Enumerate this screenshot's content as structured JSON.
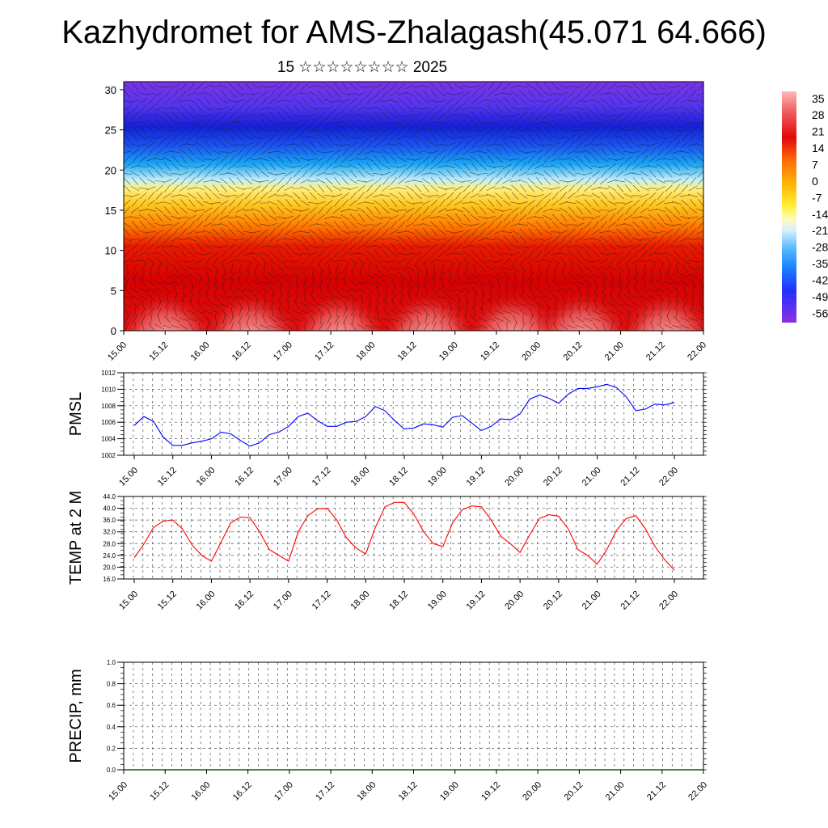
{
  "title": "Kazhydromet for AMS-Zhalagash(45.071 64.666)",
  "subtitle": "15 ☆☆☆☆☆☆☆☆ 2025",
  "time_labels": [
    "15.00",
    "15.12",
    "16.00",
    "16.12",
    "17.00",
    "17.12",
    "18.00",
    "18.12",
    "19.00",
    "19.12",
    "20.00",
    "20.12",
    "21.00",
    "21.12",
    "22.00"
  ],
  "colors": {
    "pmsl_line": "#0000ff",
    "temp_line": "#ff0000",
    "precip_line": "#006400"
  },
  "chart_data": [
    {
      "type": "heatmap",
      "name": "cross-section",
      "y_ticks": [
        "0",
        "5",
        "10",
        "15",
        "20",
        "25",
        "30"
      ],
      "ylim": [
        0,
        31
      ],
      "colorbar_labels": [
        "35",
        "28",
        "21",
        "14",
        "7",
        "0",
        "-7",
        "-14",
        "-21",
        "-28",
        "-35",
        "-42",
        "-49",
        "-56"
      ],
      "colorbar_range": [
        -60,
        38
      ]
    },
    {
      "type": "line",
      "ylabel": "PMSL",
      "ylim": [
        1002,
        1012
      ],
      "y_ticks": [
        "1012",
        "1010",
        "1008",
        "1006",
        "1004",
        "1002"
      ],
      "x": [
        "15.00",
        "15.03",
        "15.06",
        "15.09",
        "15.12",
        "15.15",
        "15.18",
        "15.21",
        "16.00",
        "16.03",
        "16.06",
        "16.09",
        "16.12",
        "16.15",
        "16.18",
        "16.21",
        "17.00",
        "17.03",
        "17.06",
        "17.09",
        "17.12",
        "17.15",
        "17.18",
        "17.21",
        "18.00",
        "18.03",
        "18.06",
        "18.09",
        "18.12",
        "18.15",
        "18.18",
        "18.21",
        "19.00",
        "19.03",
        "19.06",
        "19.09",
        "19.12",
        "19.15",
        "19.18",
        "19.21",
        "20.00",
        "20.03",
        "20.06",
        "20.09",
        "20.12",
        "20.15",
        "20.18",
        "20.21",
        "21.00",
        "21.03",
        "21.06",
        "21.09",
        "21.12",
        "21.15",
        "21.18",
        "21.21",
        "22.00"
      ],
      "values": [
        1005.6,
        1006.7,
        1006.1,
        1004.2,
        1003.2,
        1003.2,
        1003.5,
        1003.7,
        1004.0,
        1004.8,
        1004.6,
        1003.8,
        1003.1,
        1003.5,
        1004.5,
        1004.8,
        1005.5,
        1006.7,
        1007.1,
        1006.2,
        1005.5,
        1005.5,
        1006.0,
        1006.1,
        1006.7,
        1007.9,
        1007.4,
        1006.2,
        1005.2,
        1005.3,
        1005.8,
        1005.7,
        1005.4,
        1006.6,
        1006.8,
        1005.9,
        1005.0,
        1005.5,
        1006.4,
        1006.3,
        1007.0,
        1008.8,
        1009.3,
        1008.9,
        1008.3,
        1009.4,
        1010.1,
        1010.1,
        1010.3,
        1010.6,
        1010.2,
        1009.1,
        1007.4,
        1007.6,
        1008.2,
        1008.1,
        1008.4
      ]
    },
    {
      "type": "line",
      "ylabel": "TEMP at 2 M",
      "ylim": [
        16,
        44
      ],
      "y_ticks": [
        "44.0",
        "40.0",
        "36.0",
        "32.0",
        "28.0",
        "24.0",
        "20.0",
        "16.0"
      ],
      "x": [
        "15.00",
        "15.03",
        "15.06",
        "15.09",
        "15.12",
        "15.15",
        "15.18",
        "15.21",
        "16.00",
        "16.03",
        "16.06",
        "16.09",
        "16.12",
        "16.15",
        "16.18",
        "16.21",
        "17.00",
        "17.03",
        "17.06",
        "17.09",
        "17.12",
        "17.15",
        "17.18",
        "17.21",
        "18.00",
        "18.03",
        "18.06",
        "18.09",
        "18.12",
        "18.15",
        "18.18",
        "18.21",
        "19.00",
        "19.03",
        "19.06",
        "19.09",
        "19.12",
        "19.15",
        "19.18",
        "19.21",
        "20.00",
        "20.03",
        "20.06",
        "20.09",
        "20.12",
        "20.15",
        "20.18",
        "20.21",
        "21.00",
        "21.03",
        "21.06",
        "21.09",
        "21.12",
        "21.15",
        "21.18",
        "21.21",
        "22.00"
      ],
      "values": [
        23.2,
        27.8,
        33.5,
        35.6,
        36.0,
        33.0,
        27.5,
        24.0,
        22.0,
        28.5,
        35.0,
        37.0,
        36.8,
        32.0,
        26.0,
        24.0,
        22.0,
        32.0,
        37.5,
        39.8,
        40.0,
        36.0,
        30.0,
        26.5,
        24.5,
        33.5,
        40.5,
        42.0,
        42.0,
        38.0,
        32.0,
        28.0,
        27.0,
        35.0,
        39.5,
        40.8,
        40.5,
        36.0,
        30.5,
        28.0,
        25.0,
        31.0,
        36.5,
        37.8,
        37.3,
        33.0,
        26.0,
        24.0,
        21.0,
        26.0,
        32.5,
        36.5,
        37.5,
        33.0,
        27.0,
        22.5,
        19.0
      ]
    },
    {
      "type": "line",
      "ylabel": "PRECIP, mm",
      "ylim": [
        0,
        1
      ],
      "y_ticks": [
        "1.0",
        "0.8",
        "0.6",
        "0.4",
        "0.2",
        "0.0"
      ],
      "x": [
        "15.00",
        "15.12",
        "16.00",
        "16.12",
        "17.00",
        "17.12",
        "18.00",
        "18.12",
        "19.00",
        "19.12",
        "20.00",
        "20.12",
        "21.00",
        "21.12",
        "22.00"
      ],
      "values": [
        0,
        0,
        0,
        0,
        0,
        0,
        0,
        0,
        0,
        0,
        0,
        0,
        0,
        0,
        0
      ]
    }
  ]
}
